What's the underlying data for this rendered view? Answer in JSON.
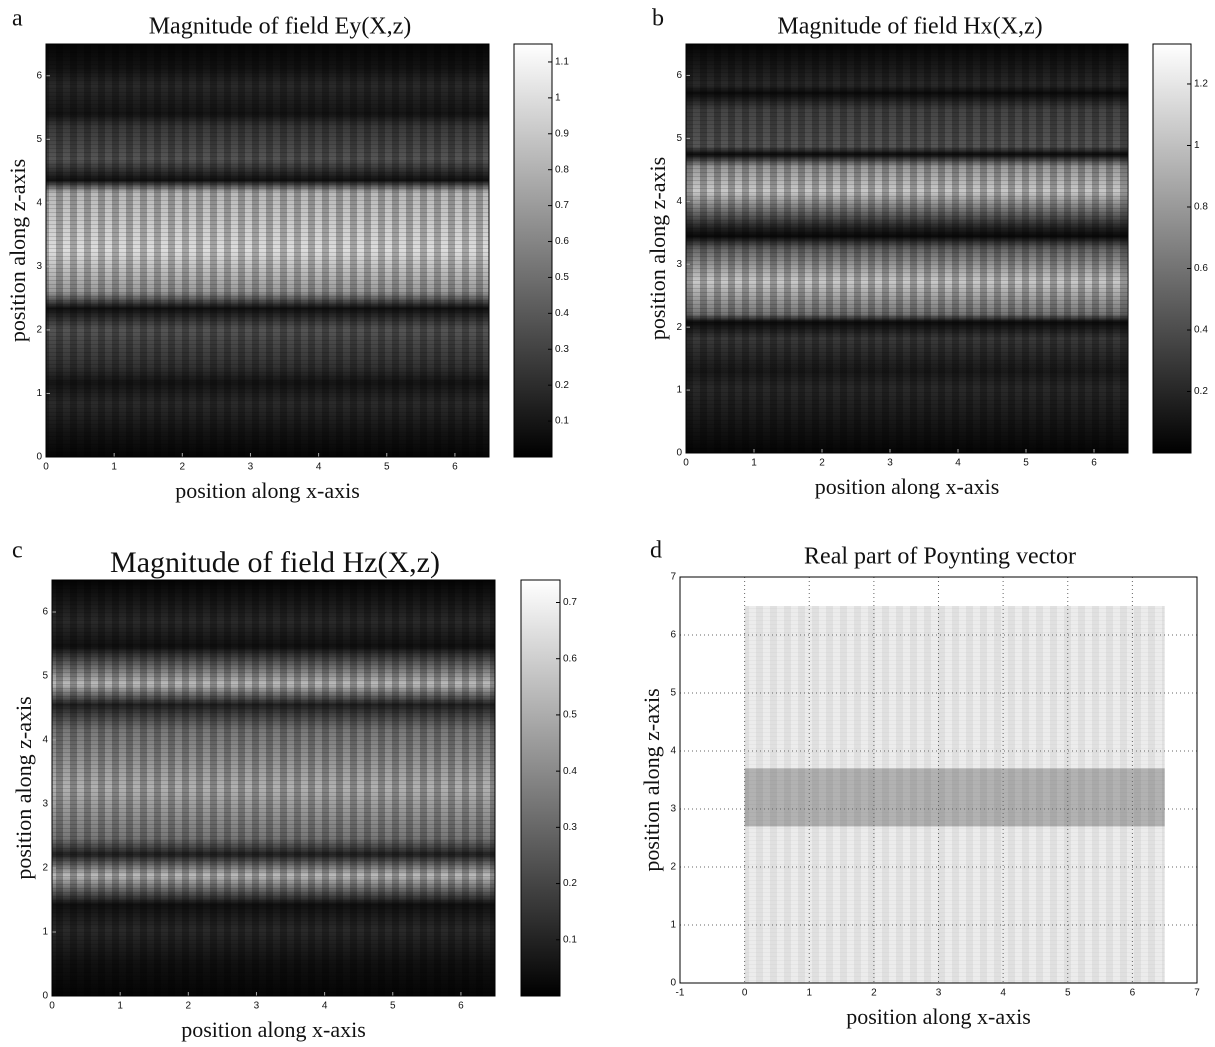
{
  "chart_data": [
    {
      "panel": "a",
      "type": "heatmap",
      "title": "Magnitude of field Ey(X,z)",
      "x_label": "position along x-axis",
      "y_label": "position along z-axis",
      "xlim": [
        0,
        6.5
      ],
      "ylim": [
        0,
        6.5
      ],
      "xticks": [
        0,
        1,
        2,
        3,
        4,
        5,
        6
      ],
      "yticks": [
        0,
        1,
        2,
        3,
        4,
        5,
        6
      ],
      "colorbar": {
        "lim": [
          0,
          1.15
        ],
        "ticks": [
          0.1,
          0.2,
          0.3,
          0.4,
          0.5,
          0.6,
          0.7,
          0.8,
          0.9,
          1,
          1.1
        ]
      }
    },
    {
      "panel": "b",
      "type": "heatmap",
      "title": "Magnitude of field Hx(X,z)",
      "x_label": "position along x-axis",
      "y_label": "position along z-axis",
      "xlim": [
        0,
        6.5
      ],
      "ylim": [
        0,
        6.5
      ],
      "xticks": [
        0,
        1,
        2,
        3,
        4,
        5,
        6
      ],
      "yticks": [
        0,
        1,
        2,
        3,
        4,
        5,
        6
      ],
      "colorbar": {
        "lim": [
          0,
          1.33
        ],
        "ticks": [
          0.2,
          0.4,
          0.6,
          0.8,
          1,
          1.2
        ]
      }
    },
    {
      "panel": "c",
      "type": "heatmap",
      "title": "Magnitude of field Hz(X,z)",
      "x_label": "position along x-axis",
      "y_label": "position along z-axis",
      "xlim": [
        0,
        6.5
      ],
      "ylim": [
        0,
        6.5
      ],
      "xticks": [
        0,
        1,
        2,
        3,
        4,
        5,
        6
      ],
      "yticks": [
        0,
        1,
        2,
        3,
        4,
        5,
        6
      ],
      "colorbar": {
        "lim": [
          0,
          0.74
        ],
        "ticks": [
          0.1,
          0.2,
          0.3,
          0.4,
          0.5,
          0.6,
          0.7
        ]
      }
    },
    {
      "panel": "d",
      "type": "vector-field",
      "title": "Real part of Poynting vector",
      "x_label": "position along x-axis",
      "y_label": "position along z-axis",
      "xlim": [
        -1,
        7
      ],
      "ylim": [
        0,
        7
      ],
      "xticks": [
        -1,
        0,
        1,
        2,
        3,
        4,
        5,
        6,
        7
      ],
      "yticks": [
        0,
        1,
        2,
        3,
        4,
        5,
        6,
        7
      ],
      "grid": true
    }
  ]
}
